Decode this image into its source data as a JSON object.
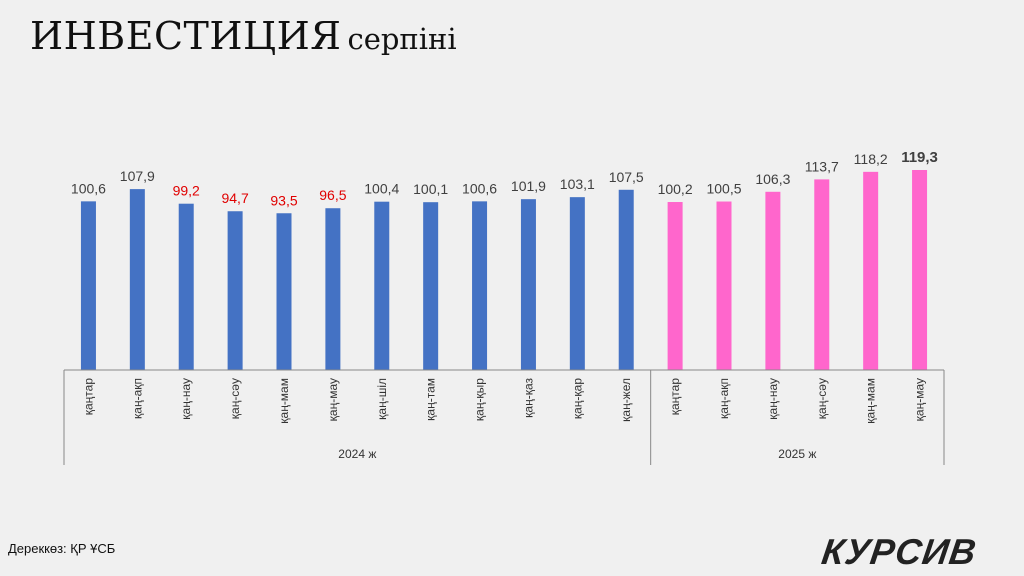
{
  "title": {
    "main": "ИНВЕСТИЦИЯ",
    "sub": "серпіні"
  },
  "source": "Дереккөз: ҚР ҰСБ",
  "logo": "КУРСИВ",
  "colors": {
    "bar_2024": "#4472c4",
    "bar_2025": "#ff66cc",
    "label_normal": "#404040",
    "label_below_100": "#e00000",
    "axis": "#888888"
  },
  "chart_data": {
    "type": "bar",
    "categories": [
      "қаңтар",
      "қаң-ақп",
      "қаң-нау",
      "қаң-сәу",
      "қаң-мам",
      "қаң-мау",
      "қаң-шіл",
      "қаң-там",
      "қаң-қыр",
      "қаң-қаз",
      "қаң-қар",
      "қаң-жел",
      "қаңтар",
      "қаң-ақп",
      "қаң-нау",
      "қаң-сәу",
      "қаң-мам",
      "қаң-мау"
    ],
    "values": [
      100.6,
      107.9,
      99.2,
      94.7,
      93.5,
      96.5,
      100.4,
      100.1,
      100.6,
      101.9,
      103.1,
      107.5,
      100.2,
      100.5,
      106.3,
      113.7,
      118.2,
      119.3
    ],
    "value_labels": [
      "100,6",
      "107,9",
      "99,2",
      "94,7",
      "93,5",
      "96,5",
      "100,4",
      "100,1",
      "100,6",
      "101,9",
      "103,1",
      "107,5",
      "100,2",
      "100,5",
      "106,3",
      "113,7",
      "118,2",
      "119,3"
    ],
    "groups": [
      {
        "name": "2024 ж",
        "count": 12
      },
      {
        "name": "2025 ж",
        "count": 6
      }
    ],
    "ylim": [
      0,
      120
    ],
    "grid": false,
    "legend": "none",
    "highlight_last_label": true
  }
}
